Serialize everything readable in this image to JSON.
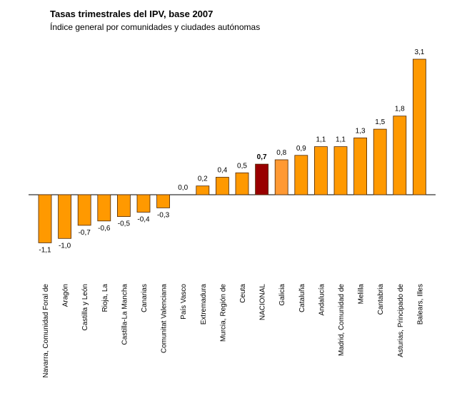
{
  "chart_data": {
    "type": "bar",
    "title": "Tasas trimestrales del IPV, base 2007",
    "subtitle": "Índice general por comunidades y ciudades autónomas",
    "xlabel": "",
    "ylabel": "",
    "ylim": [
      -1.1,
      3.1
    ],
    "grid": false,
    "legend": "none",
    "categories": [
      "Navarra, Comunidad Foral de",
      "Aragón",
      "Castilla y León",
      "Rioja, La",
      "Castilla-La Mancha",
      "Canarias",
      "Comunitat Valenciana",
      "País Vasco",
      "Extremadura",
      "Murcia, Región de",
      "Ceuta",
      "NACIONAL",
      "Galicia",
      "Cataluña",
      "Andalucía",
      "Madrid, Comunidad de",
      "Melilla",
      "Cantabria",
      "Asturias, Principado de",
      "Balears, Illes"
    ],
    "values": [
      -1.1,
      -1.0,
      -0.7,
      -0.6,
      -0.5,
      -0.4,
      -0.3,
      0.0,
      0.2,
      0.4,
      0.5,
      0.7,
      0.8,
      0.9,
      1.1,
      1.1,
      1.3,
      1.5,
      1.8,
      3.1
    ],
    "value_labels": [
      "-1,1",
      "-1,0",
      "-0,7",
      "-0,6",
      "-0,5",
      "-0,4",
      "-0,3",
      "0,0",
      "0,2",
      "0,4",
      "0,5",
      "0,7",
      "0,8",
      "0,9",
      "1,1",
      "1,1",
      "1,3",
      "1,5",
      "1,8",
      "3,1"
    ],
    "colors": {
      "default": "#ff9900",
      "NACIONAL": "#990000",
      "Galicia": "#ff9933",
      "bar_border": "#4d2600"
    }
  }
}
